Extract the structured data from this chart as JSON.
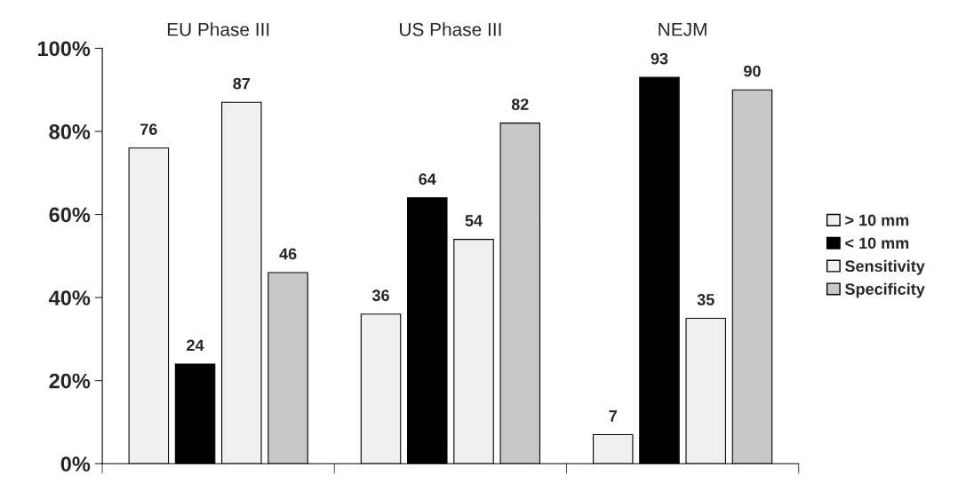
{
  "chart_data": {
    "type": "bar",
    "categories": [
      "EU Phase III",
      "US Phase III",
      "NEJM"
    ],
    "series": [
      {
        "name": "> 10 mm",
        "color": "#f0f0f0",
        "values": [
          76,
          36,
          7
        ]
      },
      {
        "name": "< 10 mm",
        "color": "#000000",
        "values": [
          24,
          64,
          93
        ]
      },
      {
        "name": "Sensitivity",
        "color": "#f0f0f0",
        "values": [
          87,
          54,
          35
        ]
      },
      {
        "name": "Specificity",
        "color": "#c8c8c8",
        "values": [
          46,
          82,
          90
        ]
      }
    ],
    "ylim": [
      0,
      100
    ],
    "yticks": [
      {
        "value": 0,
        "label": "0%"
      },
      {
        "value": 20,
        "label": "20%"
      },
      {
        "value": 40,
        "label": "40%"
      },
      {
        "value": 60,
        "label": "60%"
      },
      {
        "value": 80,
        "label": "80%"
      },
      {
        "value": 100,
        "label": "100%"
      }
    ],
    "data_labels": true,
    "grid": false,
    "legend": "right"
  }
}
